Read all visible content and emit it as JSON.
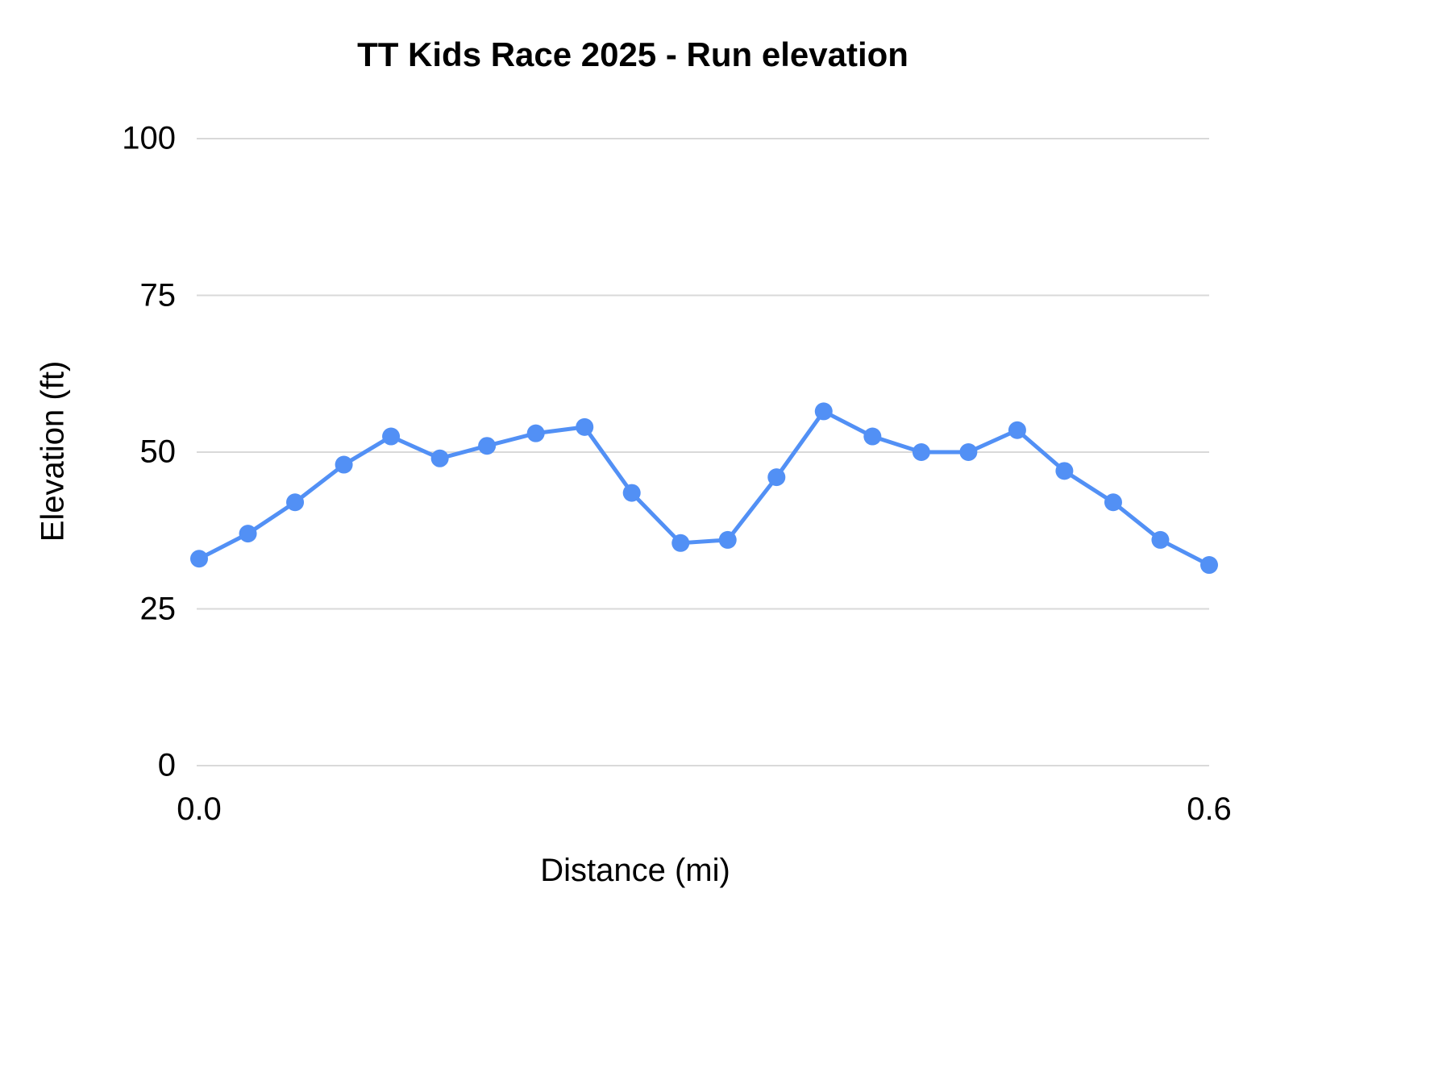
{
  "chart_data": {
    "type": "line",
    "title": "TT Kids Race 2025 - Run elevation",
    "xlabel": "Distance (mi)",
    "ylabel": "Elevation (ft)",
    "xlim": [
      0.0,
      0.6
    ],
    "ylim": [
      0,
      100
    ],
    "yticks": [
      0,
      25,
      50,
      75,
      100
    ],
    "xticks": [
      {
        "label": "0.0",
        "value": 0.0
      },
      {
        "label": "0.6",
        "value": 0.6
      }
    ],
    "grid": "horizontal",
    "legend": "none",
    "series_name": "Run elevation",
    "x": [
      0,
      0.029,
      0.057,
      0.086,
      0.114,
      0.143,
      0.171,
      0.2,
      0.229,
      0.257,
      0.286,
      0.314,
      0.343,
      0.371,
      0.4,
      0.429,
      0.457,
      0.486,
      0.514,
      0.543,
      0.571,
      0.6
    ],
    "values": [
      33,
      37,
      42,
      48,
      52.5,
      49,
      51,
      53,
      54,
      43.5,
      35.5,
      36,
      46,
      56.5,
      52.5,
      50,
      50,
      53.5,
      47,
      42,
      36,
      32
    ],
    "colors": {
      "series": "#5290f5",
      "gridline": "#d9d9d9",
      "text": "#000000"
    }
  }
}
